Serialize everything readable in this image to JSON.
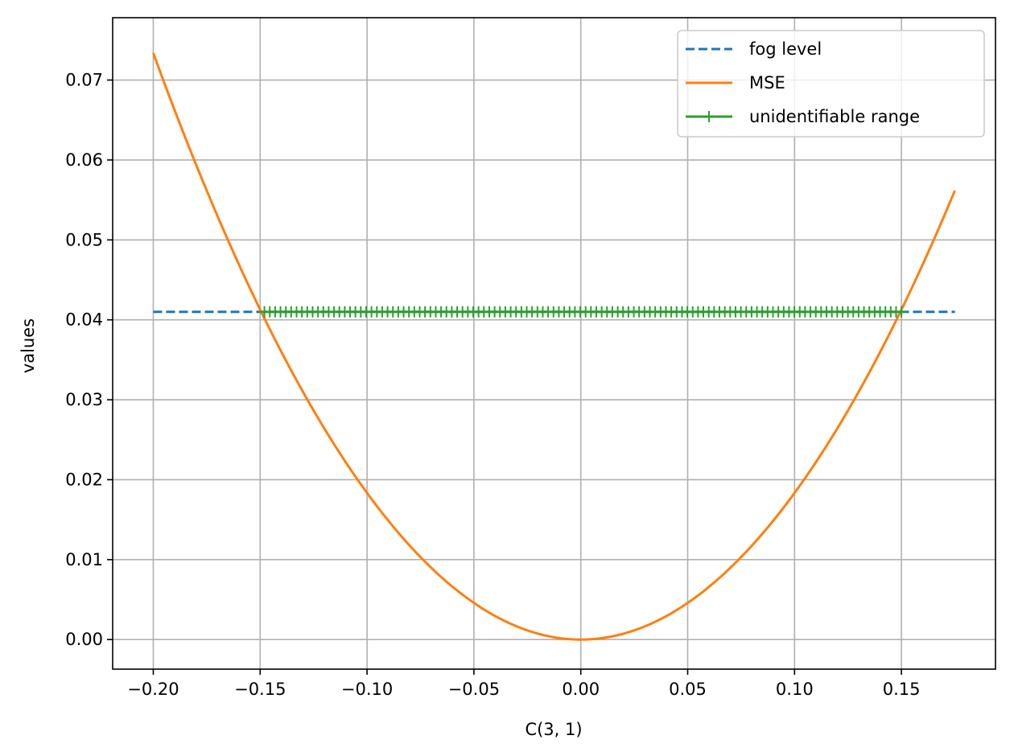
{
  "chart_data": {
    "type": "line",
    "title": "",
    "xlabel": "C(3, 1)",
    "ylabel": "values",
    "xlim": [
      -0.219,
      0.194
    ],
    "ylim": [
      -0.0037,
      0.0778
    ],
    "xticks": [
      -0.2,
      -0.15,
      -0.1,
      -0.05,
      0.0,
      0.05,
      0.1,
      0.15
    ],
    "xtick_labels": [
      "−0.20",
      "−0.15",
      "−0.10",
      "−0.05",
      "0.00",
      "0.05",
      "0.10",
      "0.15"
    ],
    "yticks": [
      0.0,
      0.01,
      0.02,
      0.03,
      0.04,
      0.05,
      0.06,
      0.07
    ],
    "ytick_labels": [
      "0.00",
      "0.01",
      "0.02",
      "0.03",
      "0.04",
      "0.05",
      "0.06",
      "0.07"
    ],
    "grid": true,
    "legend_position": "top-right",
    "series": [
      {
        "name": "fog level",
        "style": "dashed",
        "color": "#1f77b4",
        "x": [
          -0.2,
          0.175
        ],
        "y": [
          0.041,
          0.041
        ]
      },
      {
        "name": "MSE",
        "style": "solid",
        "color": "#ff7f0e",
        "x": [
          -0.2,
          -0.175,
          -0.15,
          -0.125,
          -0.1,
          -0.075,
          -0.05,
          -0.025,
          0.0,
          0.025,
          0.05,
          0.075,
          0.1,
          0.125,
          0.15,
          0.175
        ],
        "y": [
          0.0741,
          0.0562,
          0.041,
          0.0285,
          0.0183,
          0.0103,
          0.0046,
          0.0011,
          0.0,
          0.0011,
          0.0046,
          0.0103,
          0.0183,
          0.0285,
          0.041,
          0.0558
        ]
      },
      {
        "name": "unidentifiable range",
        "style": "solid",
        "marker": "+",
        "color": "#2ca02c",
        "x_start": -0.148,
        "x_end": 0.15,
        "y": 0.041,
        "marker_count": 120
      }
    ]
  }
}
